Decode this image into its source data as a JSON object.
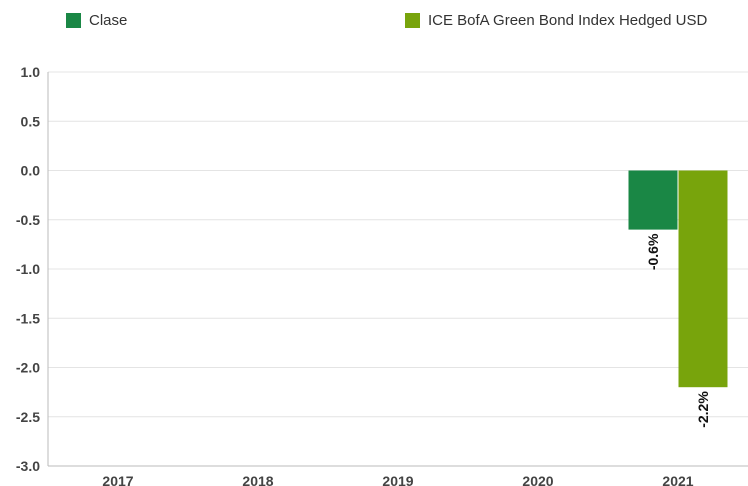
{
  "chart_data": {
    "type": "bar",
    "categories": [
      "2017",
      "2018",
      "2019",
      "2020",
      "2021"
    ],
    "series": [
      {
        "name": "Clase",
        "color": "#1a8745",
        "values": [
          null,
          null,
          null,
          null,
          -0.6
        ],
        "labels": [
          null,
          null,
          null,
          null,
          "-0.6%"
        ]
      },
      {
        "name": "ICE BofA Green Bond Index Hedged USD",
        "color": "#78a40c",
        "values": [
          null,
          null,
          null,
          null,
          -2.2
        ],
        "labels": [
          null,
          null,
          null,
          null,
          "-2.2%"
        ]
      }
    ],
    "yticks": [
      "1.0",
      "0.5",
      "0.0",
      "-0.5",
      "-1.0",
      "-1.5",
      "-2.0",
      "-2.5",
      "-3.0"
    ],
    "ylim": [
      -3.0,
      1.0
    ],
    "grid": true,
    "legend": "top"
  }
}
